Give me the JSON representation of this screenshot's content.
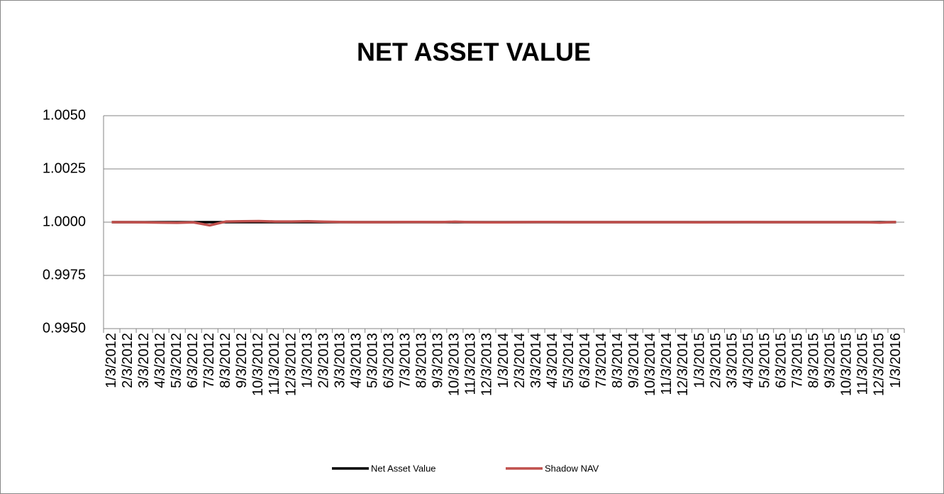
{
  "chart_data": {
    "type": "line",
    "title": "NET ASSET VALUE",
    "categories": [
      "1/3/2012",
      "2/3/2012",
      "3/3/2012",
      "4/3/2012",
      "5/3/2012",
      "6/3/2012",
      "7/3/2012",
      "8/3/2012",
      "9/3/2012",
      "10/3/2012",
      "11/3/2012",
      "12/3/2012",
      "1/3/2013",
      "2/3/2013",
      "3/3/2013",
      "4/3/2013",
      "5/3/2013",
      "6/3/2013",
      "7/3/2013",
      "8/3/2013",
      "9/3/2013",
      "10/3/2013",
      "11/3/2013",
      "12/3/2013",
      "1/3/2014",
      "2/3/2014",
      "3/3/2014",
      "4/3/2014",
      "5/3/2014",
      "6/3/2014",
      "7/3/2014",
      "8/3/2014",
      "9/3/2014",
      "10/3/2014",
      "11/3/2014",
      "12/3/2014",
      "1/3/2015",
      "2/3/2015",
      "3/3/2015",
      "4/3/2015",
      "5/3/2015",
      "6/3/2015",
      "7/3/2015",
      "8/3/2015",
      "9/3/2015",
      "10/3/2015",
      "11/3/2015",
      "12/3/2015",
      "1/3/2016"
    ],
    "series": [
      {
        "name": "Net Asset Value",
        "color": "#000000",
        "values": [
          1,
          1,
          1,
          1,
          1,
          1,
          1,
          1,
          1,
          1,
          1,
          1,
          1,
          1,
          1,
          1,
          1,
          1,
          1,
          1,
          1,
          1,
          1,
          1,
          1,
          1,
          1,
          1,
          1,
          1,
          1,
          1,
          1,
          1,
          1,
          1,
          1,
          1,
          1,
          1,
          1,
          1,
          1,
          1,
          1,
          1,
          1,
          1,
          1
        ]
      },
      {
        "name": "Shadow NAV",
        "color": "#c0504d",
        "values": [
          1,
          1,
          0.99999,
          0.99998,
          0.99997,
          0.99999,
          0.99985,
          1.00003,
          1.00004,
          1.00005,
          1.00003,
          1.00003,
          1.00004,
          1.00002,
          1.00001,
          1,
          1,
          1,
          1.00001,
          1.00001,
          1,
          1.00002,
          1,
          0.99999,
          0.99999,
          1,
          1.00001,
          1.00001,
          1,
          1,
          1,
          1,
          1,
          1,
          1,
          1,
          0.99999,
          1,
          1,
          1.00001,
          1,
          1,
          1,
          1,
          1,
          1,
          1,
          0.99998,
          1.00001
        ]
      }
    ],
    "ylim": [
      0.995,
      1.005
    ],
    "yticks": [
      {
        "value": 0.995,
        "label": "0.9950"
      },
      {
        "value": 0.9975,
        "label": "0.9975"
      },
      {
        "value": 1,
        "label": "1.0000"
      },
      {
        "value": 1.0025,
        "label": "1.0025"
      },
      {
        "value": 1.005,
        "label": "1.0050"
      }
    ],
    "grid": true,
    "legend": "bottom"
  }
}
